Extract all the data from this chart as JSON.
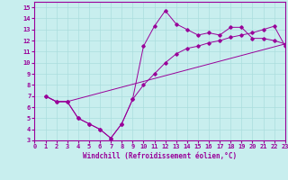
{
  "background_color": "#c8eeee",
  "grid_color": "#aadddd",
  "line_color": "#990099",
  "xlabel": "Windchill (Refroidissement éolien,°C)",
  "xlim": [
    0,
    23
  ],
  "ylim": [
    3,
    15.5
  ],
  "xticks": [
    0,
    1,
    2,
    3,
    4,
    5,
    6,
    7,
    8,
    9,
    10,
    11,
    12,
    13,
    14,
    15,
    16,
    17,
    18,
    19,
    20,
    21,
    22,
    23
  ],
  "yticks": [
    3,
    4,
    5,
    6,
    7,
    8,
    9,
    10,
    11,
    12,
    13,
    14,
    15
  ],
  "line1_x": [
    1,
    2,
    3,
    4,
    5,
    6,
    7,
    8,
    9,
    10,
    11,
    12,
    13,
    14,
    15,
    16,
    17,
    18,
    19,
    20,
    21,
    22,
    23
  ],
  "line1_y": [
    7.0,
    6.5,
    6.5,
    5.0,
    4.5,
    4.0,
    3.2,
    4.5,
    6.7,
    11.5,
    13.3,
    14.7,
    13.5,
    13.0,
    12.5,
    12.7,
    12.5,
    13.2,
    13.2,
    12.2,
    12.2,
    12.0,
    11.7
  ],
  "line2_x": [
    1,
    2,
    3,
    23
  ],
  "line2_y": [
    7.0,
    6.5,
    6.5,
    11.7
  ],
  "line3_x": [
    1,
    2,
    3,
    4,
    5,
    6,
    7,
    8,
    9,
    10,
    11,
    12,
    13,
    14,
    15,
    16,
    17,
    18,
    19,
    20,
    21,
    22,
    23
  ],
  "line3_y": [
    7.0,
    6.5,
    6.5,
    5.0,
    4.5,
    4.0,
    3.2,
    4.5,
    6.7,
    8.0,
    9.0,
    10.0,
    10.8,
    11.3,
    11.5,
    11.8,
    12.0,
    12.3,
    12.5,
    12.7,
    13.0,
    13.3,
    11.5
  ]
}
